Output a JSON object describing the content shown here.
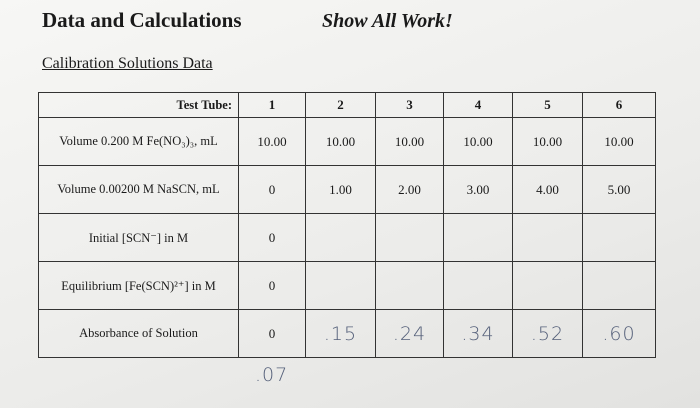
{
  "header": {
    "title": "Data and Calculations",
    "note": "Show All Work!"
  },
  "section_title": "Calibration Solutions Data",
  "table": {
    "header": [
      "Test Tube:",
      "1",
      "2",
      "3",
      "4",
      "5",
      "6"
    ],
    "rows": [
      [
        "Volume 0.200 M Fe(NO₃)₃, mL",
        "10.00",
        "10.00",
        "10.00",
        "10.00",
        "10.00",
        "10.00"
      ],
      [
        "Volume 0.00200 M NaSCN, mL",
        "0",
        "1.00",
        "2.00",
        "3.00",
        "4.00",
        "5.00"
      ],
      [
        "Initial [SCN⁻] in M",
        "0"
      ],
      [
        "Equilibrium [Fe(SCN)²⁺] in M",
        "0"
      ],
      [
        "Absorbance of Solution",
        "0",
        ".15",
        ".24",
        ".34",
        ".52",
        ".60"
      ]
    ]
  },
  "handwritten_note": ".07"
}
